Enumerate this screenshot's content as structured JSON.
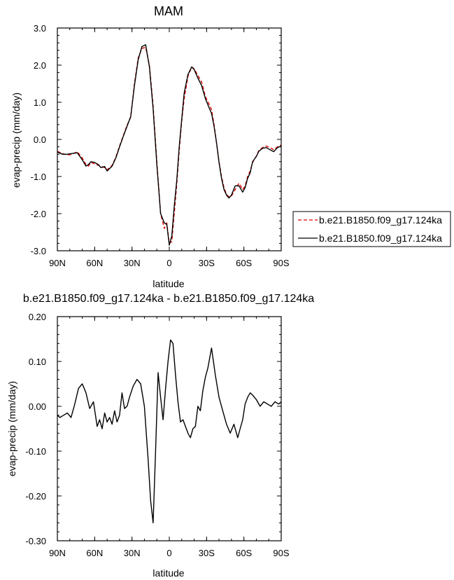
{
  "chart_data": [
    {
      "type": "line",
      "title": "MAM",
      "xlabel": "latitude",
      "ylabel": "evap-precip (mm/day)",
      "x_direction": "north-to-south",
      "xlim": [
        90,
        -90
      ],
      "ylim": [
        -3.0,
        3.0
      ],
      "xtick_values": [
        90,
        60,
        30,
        0,
        -30,
        -60,
        -90
      ],
      "xtick_labels": [
        "90N",
        "60N",
        "30N",
        "0",
        "30S",
        "60S",
        "90S"
      ],
      "ytick_values": [
        3.0,
        2.0,
        1.0,
        0.0,
        -1.0,
        -2.0,
        -3.0
      ],
      "ytick_labels": [
        "3.0",
        "2.0",
        "1.0",
        "0.0",
        "-1.0",
        "-2.0",
        "-3.0"
      ],
      "grid": false,
      "legend_position": "outside-right",
      "x": [
        90,
        86,
        82,
        78,
        74,
        70,
        67,
        65,
        63,
        60,
        57,
        55,
        52,
        50,
        46,
        43,
        40,
        37,
        34,
        31,
        28,
        25,
        22,
        19,
        16,
        13,
        10,
        7,
        4,
        2,
        0,
        -2,
        -4,
        -6,
        -8,
        -10,
        -12,
        -15,
        -18,
        -20,
        -23,
        -26,
        -29,
        -32,
        -34,
        -36,
        -38,
        -40,
        -42,
        -44,
        -46,
        -48,
        -50,
        -53,
        -56,
        -59,
        -61,
        -63,
        -65,
        -67,
        -70,
        -72,
        -75,
        -78,
        -81,
        -84,
        -87,
        -90
      ],
      "series": [
        {
          "name": "b.e21.B1850.f09_g17.124ka",
          "color": "#dd0000",
          "dash": "dashed",
          "values": [
            -0.32,
            -0.38,
            -0.42,
            -0.4,
            -0.33,
            -0.5,
            -0.68,
            -0.72,
            -0.62,
            -0.66,
            -0.7,
            -0.72,
            -0.76,
            -0.82,
            -0.7,
            -0.48,
            -0.18,
            0.1,
            0.38,
            0.6,
            1.5,
            2.2,
            2.45,
            2.48,
            2.0,
            0.9,
            -0.6,
            -2.0,
            -2.4,
            -2.25,
            -2.8,
            -2.75,
            -2.0,
            -1.2,
            -0.3,
            0.5,
            1.1,
            1.7,
            1.95,
            1.9,
            1.72,
            1.55,
            1.15,
            0.95,
            0.8,
            0.4,
            -0.1,
            -0.6,
            -1.0,
            -1.3,
            -1.48,
            -1.55,
            -1.52,
            -1.35,
            -1.18,
            -1.35,
            -1.25,
            -1.0,
            -0.85,
            -0.62,
            -0.45,
            -0.3,
            -0.22,
            -0.18,
            -0.22,
            -0.28,
            -0.2,
            -0.15
          ]
        },
        {
          "name": "b.e21.B1850.f09_g17.124ka",
          "color": "#000000",
          "dash": "solid",
          "values": [
            -0.34,
            -0.4,
            -0.4,
            -0.38,
            -0.36,
            -0.55,
            -0.72,
            -0.68,
            -0.6,
            -0.62,
            -0.68,
            -0.76,
            -0.73,
            -0.85,
            -0.72,
            -0.5,
            -0.2,
            0.08,
            0.35,
            0.62,
            1.45,
            2.15,
            2.5,
            2.55,
            1.95,
            0.82,
            -0.68,
            -2.0,
            -2.25,
            -2.28,
            -2.85,
            -2.6,
            -1.8,
            -1.1,
            -0.2,
            0.55,
            1.25,
            1.75,
            1.95,
            1.88,
            1.65,
            1.45,
            1.1,
            0.85,
            0.7,
            0.35,
            -0.1,
            -0.62,
            -1.05,
            -1.35,
            -1.5,
            -1.58,
            -1.5,
            -1.25,
            -1.25,
            -1.42,
            -1.3,
            -1.05,
            -0.9,
            -0.6,
            -0.46,
            -0.32,
            -0.24,
            -0.22,
            -0.28,
            -0.33,
            -0.22,
            -0.18
          ]
        }
      ]
    },
    {
      "type": "line",
      "title": "b.e21.B1850.f09_g17.124ka - b.e21.B1850.f09_g17.124ka",
      "xlabel": "latitude",
      "ylabel": "evap-precip (mm/day)",
      "x_direction": "north-to-south",
      "xlim": [
        90,
        -90
      ],
      "ylim": [
        -0.3,
        0.2
      ],
      "xtick_values": [
        90,
        60,
        30,
        0,
        -30,
        -60,
        -90
      ],
      "xtick_labels": [
        "90N",
        "60N",
        "30N",
        "0",
        "30S",
        "60S",
        "90S"
      ],
      "ytick_values": [
        0.2,
        0.1,
        0.0,
        -0.1,
        -0.2,
        -0.3
      ],
      "ytick_labels": [
        "0.20",
        "0.10",
        "0.00",
        "-0.10",
        "-0.20",
        "-0.30"
      ],
      "grid": false,
      "x": [
        90,
        88,
        85,
        82,
        79,
        76,
        73,
        70,
        67,
        64,
        61,
        58,
        56,
        54,
        52,
        50,
        48,
        46,
        44,
        42,
        40,
        38,
        36,
        34,
        32,
        29,
        26,
        23,
        20,
        17,
        15,
        13,
        11,
        9,
        7,
        5,
        3,
        1,
        -1,
        -3,
        -5,
        -7,
        -9,
        -11,
        -13,
        -15,
        -17,
        -19,
        -21,
        -23,
        -25,
        -27,
        -29,
        -31,
        -34,
        -37,
        -40,
        -43,
        -46,
        -49,
        -52,
        -55,
        -57,
        -59,
        -61,
        -63,
        -65,
        -67,
        -70,
        -73,
        -76,
        -79,
        -82,
        -85,
        -88,
        -90
      ],
      "series": [
        {
          "name": "",
          "color": "#000000",
          "dash": "solid",
          "values": [
            -0.02,
            -0.025,
            -0.02,
            -0.015,
            -0.025,
            0.005,
            0.04,
            0.05,
            0.03,
            -0.005,
            0.01,
            -0.045,
            -0.03,
            -0.05,
            -0.015,
            -0.035,
            -0.025,
            -0.04,
            -0.01,
            -0.035,
            -0.02,
            0.03,
            -0.005,
            0.0,
            0.02,
            0.045,
            0.06,
            0.05,
            0.0,
            -0.12,
            -0.21,
            -0.26,
            -0.1,
            0.075,
            0.02,
            -0.03,
            0.04,
            0.1,
            0.148,
            0.14,
            0.07,
            0.01,
            -0.035,
            -0.03,
            -0.045,
            -0.06,
            -0.07,
            -0.05,
            -0.045,
            0.0,
            -0.01,
            0.035,
            0.065,
            0.085,
            0.13,
            0.07,
            0.02,
            -0.01,
            -0.04,
            -0.06,
            -0.04,
            -0.07,
            -0.05,
            -0.03,
            0.005,
            0.02,
            0.03,
            0.025,
            0.015,
            0.0,
            0.01,
            0.005,
            0.0,
            0.01,
            0.005,
            0.01
          ]
        }
      ]
    }
  ]
}
